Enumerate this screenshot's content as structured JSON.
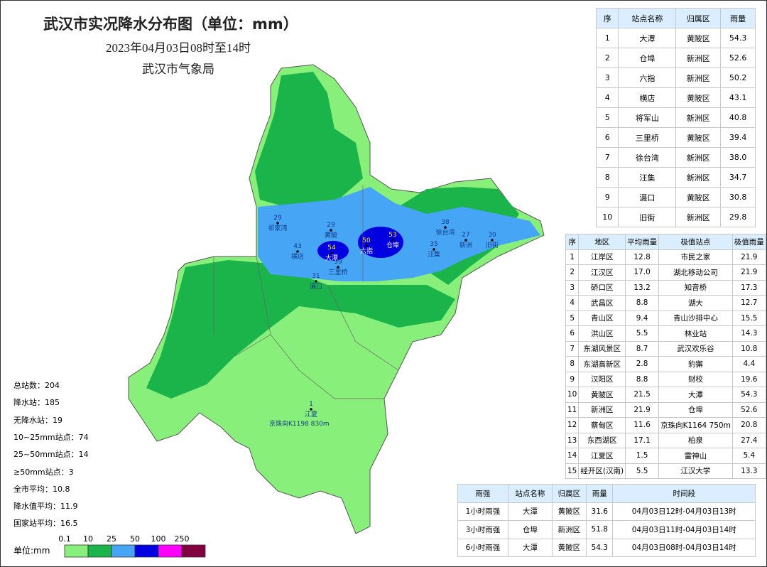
{
  "header": {
    "title": "武汉市实况降水分布图（单位：mm）",
    "subtitle": "2023年04月03日08时至14时",
    "agency": "武汉市气象局"
  },
  "top_stations": {
    "columns": [
      "序",
      "站点名称",
      "归属区",
      "雨量"
    ],
    "rows": [
      [
        1,
        "大潭",
        "黄陂区",
        54.3
      ],
      [
        2,
        "仓埠",
        "新洲区",
        52.6
      ],
      [
        3,
        "六指",
        "新洲区",
        50.2
      ],
      [
        4,
        "横店",
        "黄陂区",
        43.1
      ],
      [
        5,
        "将军山",
        "新洲区",
        40.8
      ],
      [
        6,
        "三里桥",
        "黄陂区",
        39.4
      ],
      [
        7,
        "徐台湾",
        "新洲区",
        "38.0"
      ],
      [
        8,
        "汪集",
        "新洲区",
        34.7
      ],
      [
        9,
        "滠口",
        "黄陂区",
        30.8
      ],
      [
        10,
        "旧街",
        "新洲区",
        29.8
      ]
    ]
  },
  "district_table": {
    "columns": [
      "序",
      "地区",
      "平均雨量",
      "极值站点",
      "极值雨量"
    ],
    "rows": [
      [
        1,
        "江岸区",
        12.8,
        "市民之家",
        21.9
      ],
      [
        2,
        "江汉区",
        "17.0",
        "湖北移动公司",
        21.9
      ],
      [
        3,
        "硚口区",
        13.2,
        "知音桥",
        17.3
      ],
      [
        4,
        "武昌区",
        8.8,
        "湖大",
        12.7
      ],
      [
        5,
        "青山区",
        9.4,
        "青山沙排中心",
        15.5
      ],
      [
        6,
        "洪山区",
        5.5,
        "林业站",
        14.3
      ],
      [
        7,
        "东湖风景区",
        8.7,
        "武汉欢乐谷",
        10.8
      ],
      [
        8,
        "东湖高新区",
        2.8,
        "豹獬",
        4.4
      ],
      [
        9,
        "汉阳区",
        8.8,
        "财校",
        19.6
      ],
      [
        10,
        "黄陂区",
        21.5,
        "大潭",
        54.3
      ],
      [
        11,
        "新洲区",
        21.9,
        "仓埠",
        52.6
      ],
      [
        12,
        "蔡甸区",
        11.6,
        "京珠向K1164 750m",
        20.8
      ],
      [
        13,
        "东西湖区",
        17.1,
        "柏泉",
        27.4
      ],
      [
        14,
        "江夏区",
        1.5,
        "雷神山",
        5.4
      ],
      [
        15,
        "经开区(汉南)",
        5.5,
        "江汉大学",
        13.3
      ]
    ]
  },
  "intensity_table": {
    "columns": [
      "雨强",
      "站点名称",
      "归属区",
      "雨量",
      "时间段"
    ],
    "rows": [
      [
        "1小时雨强",
        "大潭",
        "黄陂区",
        31.6,
        "04月03日12时-04月03日13时"
      ],
      [
        "3小时雨强",
        "仓埠",
        "新洲区",
        51.8,
        "04月03日11时-04月03日14时"
      ],
      [
        "6小时雨强",
        "大潭",
        "黄陂区",
        54.3,
        "04月03日08时-04月03日14时"
      ]
    ]
  },
  "stats": [
    {
      "label": "总站数：",
      "value": 204
    },
    {
      "label": "降水站：",
      "value": 185
    },
    {
      "label": "无降水站：",
      "value": 19
    },
    {
      "label": "10~25mm站点：",
      "value": 74
    },
    {
      "label": "25~50mm站点：",
      "value": 14
    },
    {
      "label": "≥50mm站点：",
      "value": 3
    },
    {
      "label": "全市平均：",
      "value": 10.8
    },
    {
      "label": "降水值平均：",
      "value": 11.9
    },
    {
      "label": "国家站平均：",
      "value": 16.5
    }
  ],
  "legend": {
    "title": "单位:mm",
    "ticks": [
      0.1,
      10,
      25,
      50,
      100,
      250
    ],
    "colors": [
      "#88f07a",
      "#1bb44a",
      "#47a5f5",
      "#0000e0",
      "#ff00ff",
      "#800040"
    ]
  },
  "map_labels": [
    {
      "value": 54,
      "name": "大潭"
    },
    {
      "value": 53,
      "name": "仓埠"
    },
    {
      "value": 50,
      "name": "六指"
    },
    {
      "value": 43,
      "name": "横店"
    },
    {
      "value": 39,
      "name": "三里桥"
    },
    {
      "value": 38,
      "name": "徐台湾"
    },
    {
      "value": 35,
      "name": "汪集"
    },
    {
      "value": 31,
      "name": "滠口"
    },
    {
      "value": 30,
      "name": "旧街"
    },
    {
      "value": 29,
      "name": "黄陂"
    },
    {
      "value": 27,
      "name": "新洲"
    },
    {
      "value": 29,
      "name": "祁家湾"
    },
    {
      "value": 1,
      "name": "江夏"
    }
  ],
  "map_note": "京珠向K1198 830m"
}
